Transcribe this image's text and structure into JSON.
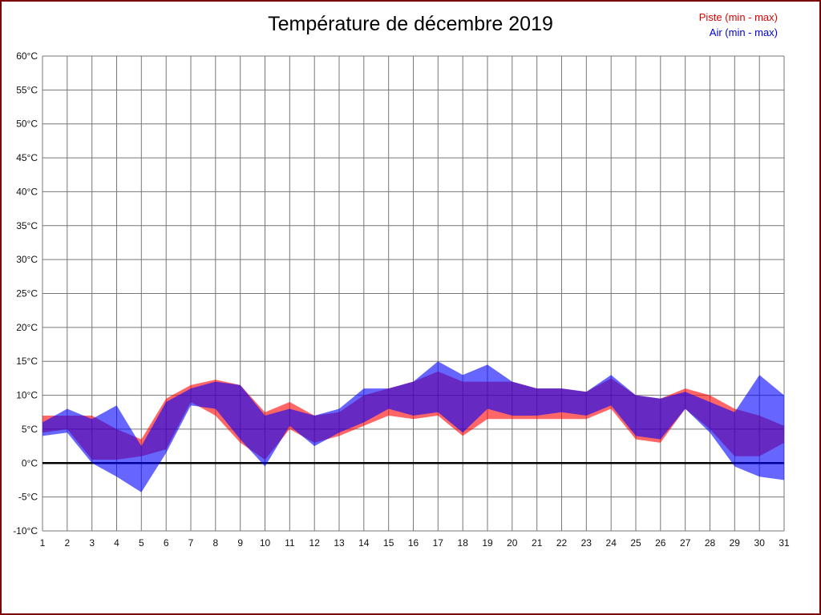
{
  "title": "Température de décembre 2019",
  "legend": {
    "piste_label": "Piste (min - max)",
    "air_label": "Air (min - max)",
    "piste_color": "#dd0000",
    "air_color": "#0000dd"
  },
  "frame": {
    "border_color": "#7b0000"
  },
  "chart_data": {
    "type": "area",
    "title": "Température de décembre 2019",
    "xlabel": "",
    "ylabel": "",
    "x": [
      1,
      2,
      3,
      4,
      5,
      6,
      7,
      8,
      9,
      10,
      11,
      12,
      13,
      14,
      15,
      16,
      17,
      18,
      19,
      20,
      21,
      22,
      23,
      24,
      25,
      26,
      27,
      28,
      29,
      30,
      31
    ],
    "ylim": [
      -10,
      60
    ],
    "ytick_step": 5,
    "ytick_suffix": "°C",
    "grid": true,
    "grid_color": "#777777",
    "zero_line": true,
    "zero_line_color": "#000000",
    "legend_position": "top-right",
    "series": [
      {
        "name": "Piste (min - max)",
        "color": "#ff0000",
        "fill_opacity": 0.6,
        "min": [
          4.5,
          5,
          0.5,
          0.5,
          1,
          2,
          9,
          7,
          3,
          0.5,
          5,
          3,
          4,
          5.5,
          7,
          6.5,
          7,
          4,
          6.5,
          6.5,
          6.5,
          6.5,
          6.5,
          8,
          3.5,
          3,
          8,
          5,
          1,
          1,
          3
        ],
        "max": [
          7,
          7,
          7,
          5,
          3.5,
          9.5,
          11.5,
          12.3,
          11.5,
          7.5,
          9,
          7,
          7.5,
          10,
          11,
          12,
          13.5,
          12,
          12,
          12,
          11,
          11,
          10.5,
          12.5,
          10,
          9.5,
          11,
          10,
          8,
          7,
          5.5
        ]
      },
      {
        "name": "Air (min - max)",
        "color": "#0000ff",
        "fill_opacity": 0.6,
        "min": [
          4,
          4.5,
          0,
          -2,
          -4.3,
          1.5,
          8.5,
          8,
          3.5,
          -0.5,
          5.5,
          2.5,
          4.5,
          6,
          8,
          7,
          7.5,
          4.5,
          8,
          7,
          7,
          7.5,
          7,
          8.5,
          4,
          3.5,
          8,
          4.5,
          -0.5,
          -2,
          -2.5
        ],
        "max": [
          6,
          8,
          6.5,
          8.5,
          2.5,
          9,
          11,
          12,
          11.5,
          7,
          8,
          7,
          8,
          11,
          11,
          12,
          15,
          13,
          14.5,
          12,
          11,
          11,
          10.5,
          13,
          10,
          9.5,
          10.5,
          9,
          7.5,
          13,
          10
        ]
      }
    ]
  }
}
